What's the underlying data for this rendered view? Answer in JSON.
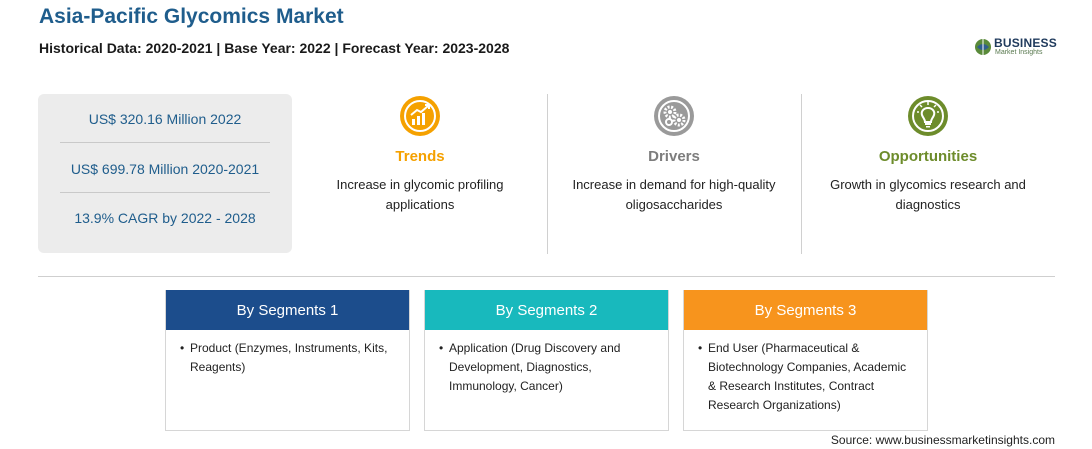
{
  "header": {
    "title": "Asia-Pacific Glycomics Market",
    "subtitle": "Historical Data: 2020-2021 | Base Year: 2022 | Forecast Year: 2023-2028"
  },
  "logo": {
    "name": "BUSINESS",
    "tagline": "Market Insights",
    "icon": "globe-logo-icon"
  },
  "stats": [
    "US$ 320.16 Million 2022",
    "US$ 699.78 Million 2020-2021",
    "13.9% CAGR by 2022 - 2028"
  ],
  "pillars": {
    "trends": {
      "label": "Trends",
      "desc": "Increase in glycomic profiling applications",
      "icon": "trend-chart-icon",
      "color": "#f5a100"
    },
    "drivers": {
      "label": "Drivers",
      "desc": "Increase in demand for high-quality oligosaccharides",
      "icon": "gears-icon",
      "color": "#7d7d7d"
    },
    "opportunities": {
      "label": "Opportunities",
      "desc": "Growth in glycomics research and diagnostics",
      "icon": "lightbulb-icon",
      "color": "#6d8c2b"
    }
  },
  "segments": [
    {
      "title": "By Segments 1",
      "bullet": "•",
      "text": "Product (Enzymes, Instruments, Kits, Reagents)",
      "color": "#1c4d8c"
    },
    {
      "title": "By Segments 2",
      "bullet": "•",
      "text": "Application (Drug Discovery and Development, Diagnostics, Immunology, Cancer)",
      "color": "#18b9bd"
    },
    {
      "title": "By Segments 3",
      "bullet": "•",
      "text": "End User (Pharmaceutical & Biotechnology Companies, Academic & Research Institutes, Contract Research Organizations)",
      "color": "#f7941d"
    }
  ],
  "source": "Source: www.businessmarketinsights.com"
}
